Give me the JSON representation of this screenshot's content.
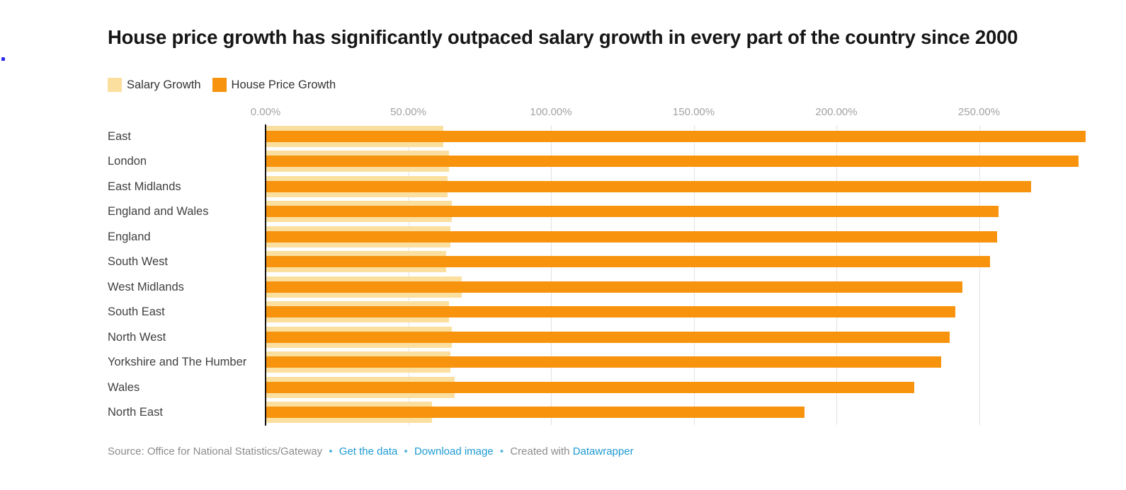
{
  "artifact": {
    "dot_color": "#2b27ee"
  },
  "header": {
    "title": "House price growth has significantly outpaced salary growth in every part of the country since 2000"
  },
  "legend": [
    {
      "label": "Salary Growth",
      "color": "#fbdf9f"
    },
    {
      "label": "House Price Growth",
      "color": "#f7930d"
    }
  ],
  "chart_data": {
    "type": "bar",
    "orientation": "horizontal",
    "title": "House price growth has significantly outpaced salary growth in every part of the country since 2000",
    "categories": [
      "East",
      "London",
      "East Midlands",
      "England and Wales",
      "England",
      "South West",
      "West Midlands",
      "South East",
      "North West",
      "Yorkshire and The Humber",
      "Wales",
      "North East"
    ],
    "series": [
      {
        "name": "Salary Growth",
        "color": "#fbdf9f",
        "values": [
          62,
          64,
          63.5,
          65,
          64.5,
          63,
          68.5,
          64,
          65,
          64.5,
          66,
          58
        ]
      },
      {
        "name": "House Price Growth",
        "color": "#f7930d",
        "values": [
          287,
          284.5,
          268,
          256.5,
          256,
          253.5,
          244,
          241.5,
          239.5,
          236.5,
          227,
          188.5
        ]
      }
    ],
    "x_ticks": [
      "0.00%",
      "50.00%",
      "100.00%",
      "150.00%",
      "200.00%",
      "250.00%"
    ],
    "x_tick_values": [
      0,
      50,
      100,
      150,
      200,
      250
    ],
    "xlim": [
      0,
      290
    ],
    "grid": true,
    "legend_position": "top",
    "unit": "%"
  },
  "footer": {
    "source": "Source: Office for National Statistics/Gateway",
    "separator": "•",
    "links": [
      {
        "label": "Get the data"
      },
      {
        "label": "Download image"
      }
    ],
    "created_with": "Created with ",
    "created_link": "Datawrapper",
    "link_color": "#1d9ad2",
    "text_color": "#8b8b8b"
  }
}
